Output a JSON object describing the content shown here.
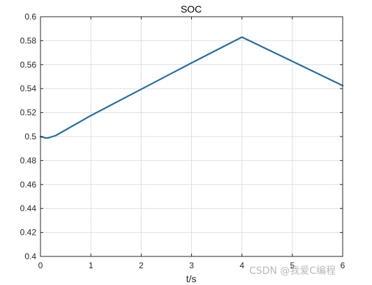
{
  "chart_data": {
    "type": "line",
    "title": "SOC",
    "xlabel": "t/s",
    "ylabel": "",
    "xlim": [
      0,
      6
    ],
    "ylim": [
      0.4,
      0.6
    ],
    "xticks": [
      0,
      1,
      2,
      3,
      4,
      5,
      6
    ],
    "yticks": [
      0.4,
      0.42,
      0.44,
      0.46,
      0.48,
      0.5,
      0.52,
      0.54,
      0.56,
      0.58,
      0.6
    ],
    "xtick_labels": [
      "0",
      "1",
      "2",
      "3",
      "4",
      "5",
      "6"
    ],
    "ytick_labels": [
      "0.4",
      "0.42",
      "0.44",
      "0.46",
      "0.48",
      "0.5",
      "0.52",
      "0.54",
      "0.56",
      "0.58",
      "0.6"
    ],
    "grid": true,
    "series": [
      {
        "color": "#1f6fad",
        "x": [
          0,
          0.05,
          0.1,
          0.15,
          0.2,
          0.3,
          1,
          2,
          3,
          4,
          4.5,
          5,
          6
        ],
        "y": [
          0.5,
          0.4995,
          0.4988,
          0.4988,
          0.4995,
          0.5008,
          0.5175,
          0.5395,
          0.5615,
          0.583,
          0.5729,
          0.5628,
          0.5425
        ]
      }
    ]
  },
  "watermark": "CSDN @我爱C编程"
}
